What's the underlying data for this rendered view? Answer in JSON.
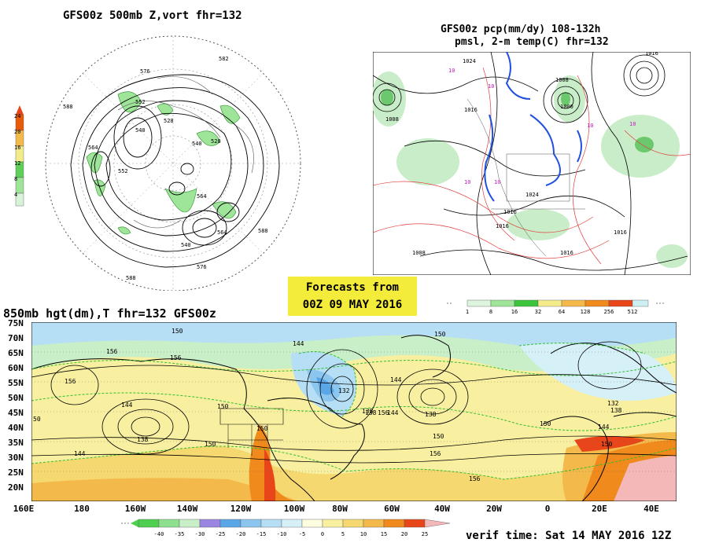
{
  "titles": {
    "top_left": "GFS00z  500mb Z,vort   fhr=132",
    "top_right_line1": "GFS00z pcp(mm/dy) 108-132h",
    "top_right_line2": "pmsl, 2-m temp(C)  fhr=132",
    "bottom": "850mb hgt(dm),T  fhr=132 GFS00z"
  },
  "banner": {
    "line1": "Forecasts from",
    "line2": "00Z 09 MAY 2016"
  },
  "verif": "verif time: Sat 14 MAY 2016 12Z",
  "vort_scale": {
    "ticks": [
      "24",
      "20",
      "16",
      "12",
      "8",
      "4"
    ],
    "colors": [
      "#e85a0c",
      "#f3b94a",
      "#f4ec8a",
      "#5fcf5a",
      "#9ee59a",
      "#d8f4d8"
    ]
  },
  "precip_scale": {
    "ticks": [
      "1",
      "8",
      "16",
      "32",
      "64",
      "128",
      "256",
      "512"
    ],
    "colors": [
      "#dcf5dc",
      "#9ee59a",
      "#3cc43c",
      "#f4ec8a",
      "#f3b94a",
      "#f08a1c",
      "#e8451a",
      "#cdeef2"
    ]
  },
  "temp_scale": {
    "ticks": [
      "-40",
      "-35",
      "-30",
      "-25",
      "-20",
      "-15",
      "-10",
      "-5",
      "0",
      "5",
      "10",
      "15",
      "20",
      "25"
    ],
    "colors": [
      "#4fcf4f",
      "#8edf8e",
      "#c8efc8",
      "#9a86e0",
      "#5aa6e6",
      "#8cc6ee",
      "#b6def4",
      "#d6f0f8",
      "#fdfde0",
      "#f8f0a0",
      "#f5d870",
      "#f3b94a",
      "#f08a1c",
      "#e8451a",
      "#f5b8b8"
    ]
  },
  "map_850": {
    "lat_labels": [
      "75N",
      "70N",
      "65N",
      "60N",
      "55N",
      "50N",
      "45N",
      "40N",
      "35N",
      "30N",
      "25N",
      "20N"
    ],
    "lon_labels": [
      "160E",
      "180",
      "160W",
      "140W",
      "120W",
      "100W",
      "80W",
      "60W",
      "40W",
      "20W",
      "0",
      "20E",
      "40E"
    ],
    "contour_labels": [
      "150",
      "156",
      "156",
      "156",
      "144",
      "138",
      "150",
      "144",
      "150",
      "144",
      "132",
      "138",
      "144",
      "138",
      "150",
      "156",
      "156",
      "150",
      "156",
      "138",
      "144",
      "150",
      "150",
      "132",
      "138",
      "144",
      "150",
      "50"
    ]
  },
  "map_500": {
    "contour_labels": [
      "576",
      "582",
      "588",
      "552",
      "528",
      "540",
      "540",
      "528",
      "564",
      "552",
      "564",
      "564",
      "540",
      "576",
      "588",
      "588"
    ]
  },
  "map_pmsl": {
    "contour_labels": [
      "1024",
      "1008",
      "1016",
      "1008",
      "1000",
      "1024",
      "1016",
      "1016",
      "1016",
      "1008",
      "1016",
      "1016",
      "10",
      "10",
      "10",
      "10",
      "10",
      "10"
    ]
  }
}
